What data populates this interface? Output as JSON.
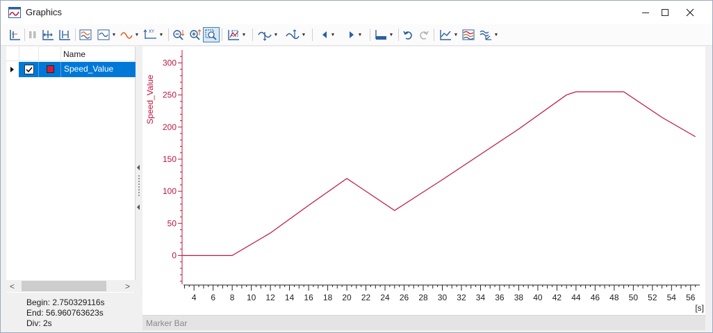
{
  "window": {
    "title": "Graphics",
    "controls": {
      "minimize": "—",
      "maximize": "☐",
      "close": "✕"
    }
  },
  "toolbar": {
    "buttons": [
      "add-signal-icon",
      "pause-icon",
      "fit-horizontal-icon",
      "fit-all-icon",
      "signal-mode-icon",
      "signal-style-icon",
      "curve-icon",
      "xy-mode-icon",
      "zoom-out-icon",
      "zoom-in-icon",
      "zoom-rect-icon",
      "scale-icon",
      "measure-cursor-icon",
      "cursor-marker-icon",
      "prev-icon",
      "next-icon",
      "layout-icon",
      "undo-icon",
      "redo-icon",
      "chart-type-icon",
      "color-scheme-icon",
      "signal-options-icon"
    ]
  },
  "signal_list": {
    "header_name": "Name",
    "signals": [
      {
        "name": "Speed_Value",
        "checked": true,
        "color": "#d71a3c"
      }
    ]
  },
  "scrollbar": {
    "left_arrow": "<",
    "right_arrow": ">"
  },
  "info": {
    "begin": "Begin: 2.750329116s",
    "end": "End: 56.960763623s",
    "div": "Div: 2s"
  },
  "marker_bar": {
    "label": "Marker Bar"
  },
  "chart_data": {
    "type": "line",
    "ylabel": "Speed_Value",
    "xunit": "[s]",
    "xlim": [
      2.750329116,
      56.960763623
    ],
    "ylim": [
      -45,
      320
    ],
    "yticks": [
      0,
      50,
      100,
      150,
      200,
      250,
      300
    ],
    "ytick_labels": [
      "0",
      "50",
      "100",
      "150",
      "200",
      "250",
      "300"
    ],
    "xticks": [
      4,
      6,
      8,
      10,
      12,
      14,
      16,
      18,
      20,
      22,
      24,
      26,
      28,
      30,
      32,
      34,
      36,
      38,
      40,
      42,
      44,
      46,
      48,
      50,
      52,
      54,
      56
    ],
    "xtick_labels": [
      "4",
      "6",
      "8",
      "10",
      "12",
      "14",
      "16",
      "18",
      "20",
      "22",
      "24",
      "26",
      "28",
      "30",
      "32",
      "34",
      "36",
      "38",
      "40",
      "42",
      "44",
      "46",
      "48",
      "50",
      "52",
      "54",
      "56"
    ],
    "color": "#c0143c",
    "series": [
      {
        "name": "Speed_Value",
        "x": [
          2.75,
          8,
          12,
          16,
          20,
          25,
          30,
          38,
          43,
          44,
          49,
          53,
          56.5
        ],
        "y": [
          0,
          0,
          35,
          78,
          120,
          70,
          118,
          197,
          250,
          255,
          255,
          215,
          185
        ]
      }
    ]
  }
}
